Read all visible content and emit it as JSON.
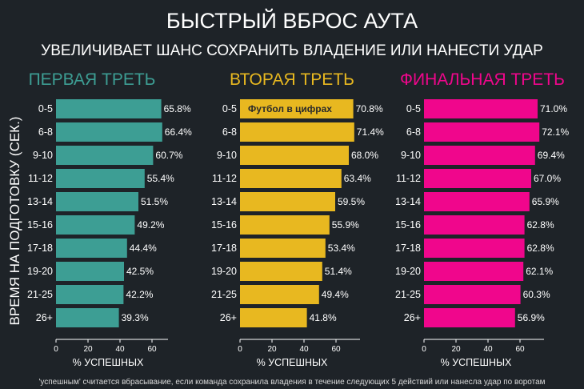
{
  "title": "БЫСТРЫЙ ВБРОС АУТА",
  "subtitle": "УВЕЛИЧИВАЕТ ШАНС СОХРАНИТЬ ВЛАДЕНИЕ ИЛИ НАНЕСТИ УДАР",
  "ylabel": "ВРЕМЯ НА ПОДГОТОВКУ (СЕК.)",
  "footnote": "'успешным' считается вбрасывание, если команда сохранила владения в течение следующих 5 действий или нанесла удар по воротам",
  "watermark": "Футбол в цифрах",
  "chart_data": [
    {
      "type": "bar",
      "orientation": "horizontal",
      "title": "ПЕРВАЯ ТРЕТЬ",
      "color": "#3d9e94",
      "title_color": "#3d9e94",
      "categories": [
        "0-5",
        "6-8",
        "9-10",
        "11-12",
        "13-14",
        "15-16",
        "17-18",
        "19-20",
        "21-25",
        "26+"
      ],
      "values": [
        65.8,
        66.4,
        60.7,
        55.4,
        51.5,
        49.2,
        44.4,
        42.5,
        42.2,
        39.3
      ],
      "labels": [
        "65.8%",
        "66.4%",
        "60.7%",
        "55.4%",
        "51.5%",
        "49.2%",
        "44.4%",
        "42.5%",
        "42.2%",
        "39.3%"
      ],
      "xlabel": "% УСПЕШНЫХ",
      "xticks": [
        0,
        20,
        40,
        60
      ],
      "xlim": [
        0,
        70
      ]
    },
    {
      "type": "bar",
      "orientation": "horizontal",
      "title": "ВТОРАЯ ТРЕТЬ",
      "color": "#e8b820",
      "title_color": "#e8b820",
      "categories": [
        "0-5",
        "6-8",
        "9-10",
        "11-12",
        "13-14",
        "15-16",
        "17-18",
        "19-20",
        "21-25",
        "26+"
      ],
      "values": [
        70.8,
        71.4,
        68.0,
        63.4,
        59.5,
        55.9,
        53.4,
        51.4,
        49.4,
        41.8
      ],
      "labels": [
        "70.8%",
        "71.4%",
        "68.0%",
        "63.4%",
        "59.5%",
        "55.9%",
        "53.4%",
        "51.4%",
        "49.4%",
        "41.8%"
      ],
      "xlabel": "% УСПЕШНЫХ",
      "xticks": [
        0,
        20,
        40,
        60
      ],
      "xlim": [
        0,
        75
      ]
    },
    {
      "type": "bar",
      "orientation": "horizontal",
      "title": "ФИНАЛЬНАЯ ТРЕТЬ",
      "color": "#f0068c",
      "title_color": "#f0068c",
      "categories": [
        "0-5",
        "6-8",
        "9-10",
        "11-12",
        "13-14",
        "15-16",
        "17-18",
        "19-20",
        "21-25",
        "26+"
      ],
      "values": [
        71.0,
        72.1,
        69.4,
        67.0,
        65.9,
        62.8,
        62.8,
        62.1,
        60.3,
        56.9
      ],
      "labels": [
        "71.0%",
        "72.1%",
        "69.4%",
        "67.0%",
        "65.9%",
        "62.8%",
        "62.8%",
        "62.1%",
        "60.3%",
        "56.9%"
      ],
      "xlabel": "% УСПЕШНЫХ",
      "xticks": [
        0,
        20,
        40,
        60
      ],
      "xlim": [
        0,
        75
      ]
    }
  ]
}
